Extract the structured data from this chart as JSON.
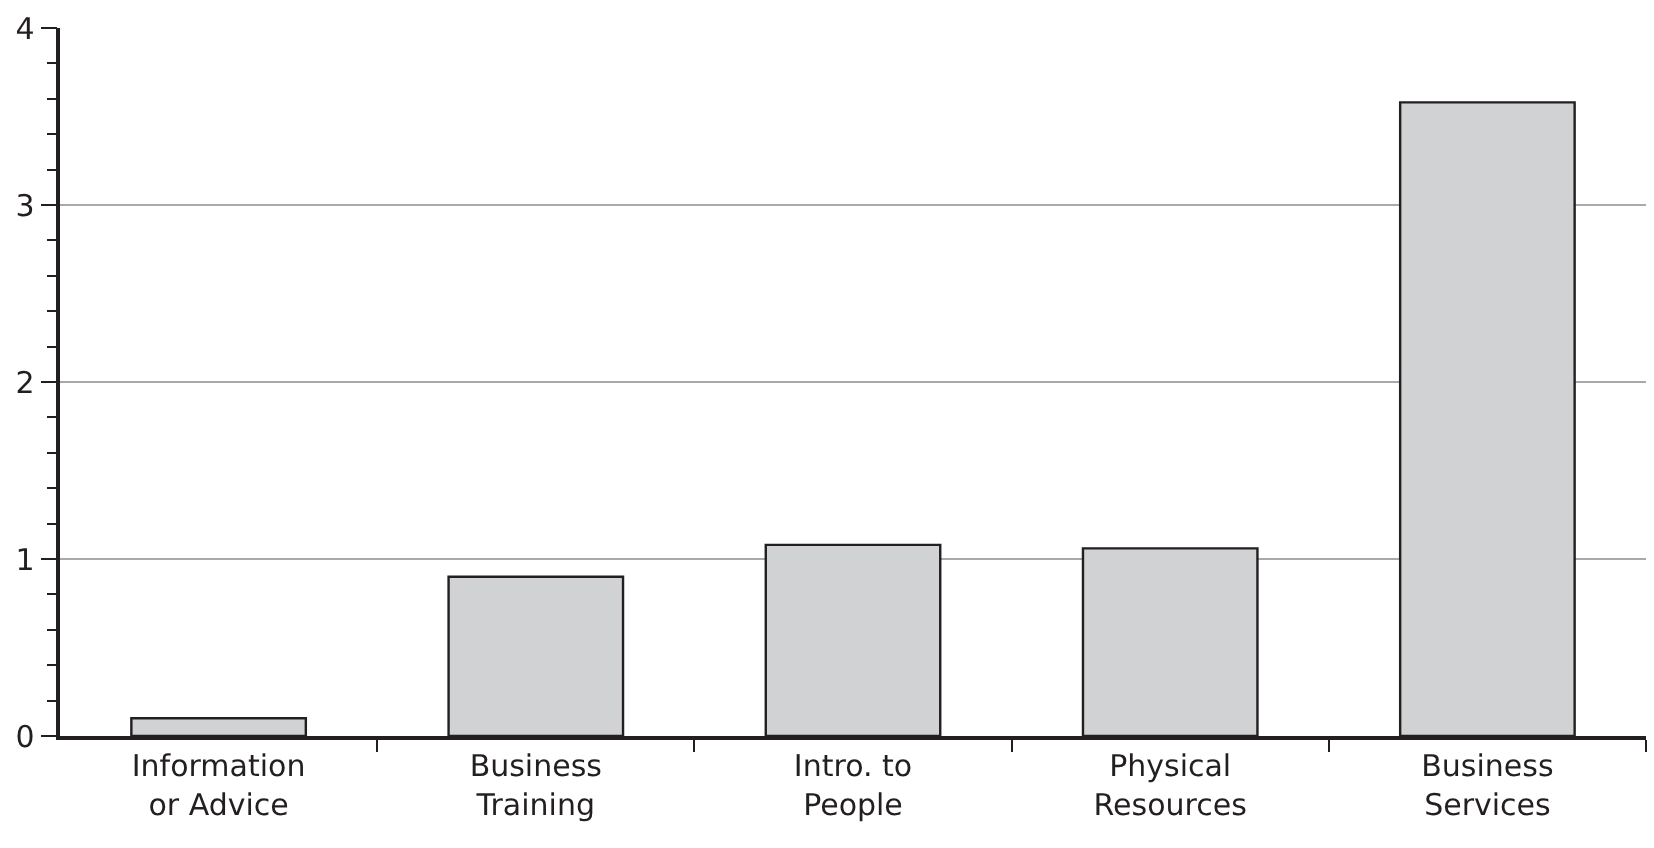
{
  "chart_data": {
    "type": "bar",
    "categories": [
      "Information or Advice",
      "Business Training",
      "Intro. to People",
      "Physical Resources",
      "Business Services"
    ],
    "values": [
      0.1,
      0.9,
      1.08,
      1.06,
      3.58
    ],
    "color": "#d1d2d4",
    "ylim": [
      0,
      4
    ],
    "yticks": [
      0,
      {
        "value": 0.2,
        "label": null
      },
      {
        "value": 0.4,
        "label": null
      },
      {
        "value": 0.6,
        "label": null
      },
      {
        "value": 0.8,
        "label": null
      },
      1,
      {
        "value": 1.2,
        "label": null
      },
      {
        "value": 1.4,
        "label": null
      },
      {
        "value": 1.6,
        "label": null
      },
      {
        "value": 1.8,
        "label": null
      },
      2,
      {
        "value": 2.2,
        "label": null
      },
      {
        "value": 2.4,
        "label": null
      },
      {
        "value": 2.6,
        "label": null
      },
      {
        "value": 2.8,
        "label": null
      },
      3,
      {
        "value": 3.2,
        "label": null
      },
      {
        "value": 3.4,
        "label": null
      },
      {
        "value": 3.6,
        "label": null
      },
      {
        "value": 3.8,
        "label": null
      },
      4
    ],
    "grid": "y"
  }
}
